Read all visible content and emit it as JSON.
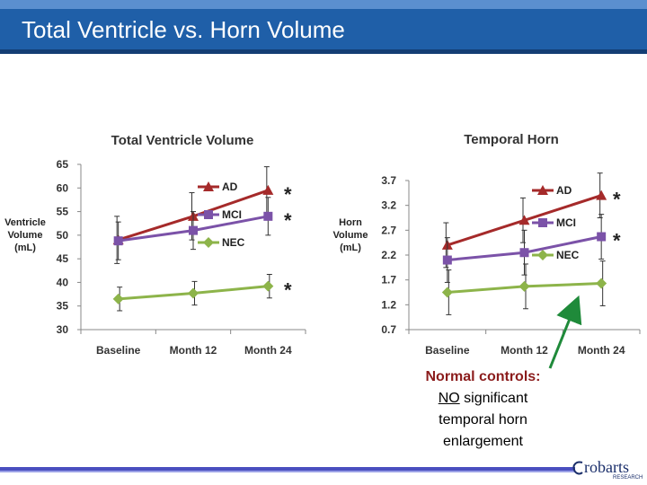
{
  "slide": {
    "title": "Total Ventricle vs. Horn Volume",
    "note_line1": "Normal controls:",
    "note_line2_underlined": "NO",
    "note_line2_rest": " significant",
    "note_line3": "temporal horn",
    "note_line4": "enlargement",
    "logo_text": "robarts",
    "logo_subtext": "RESEARCH",
    "colors": {
      "header": "#1f5fa8",
      "arrow": "#1f8a3a",
      "note_heading": "#8b1c1c"
    }
  },
  "chart_data": [
    {
      "type": "line",
      "title": "Total Ventricle Volume",
      "ylabel_lines": [
        "Ventricle",
        "Volume",
        "(mL)"
      ],
      "categories": [
        "Baseline",
        "Month 12",
        "Month 24"
      ],
      "yticks": [
        "65",
        "60",
        "55",
        "50",
        "45",
        "40",
        "35",
        "30"
      ],
      "ylim": [
        30,
        65
      ],
      "series": [
        {
          "name": "AD",
          "color": "#a52a2a",
          "marker": "triangle",
          "values": [
            49,
            54,
            59.5
          ],
          "errors": [
            5,
            5,
            5
          ],
          "significance": "*"
        },
        {
          "name": "MCI",
          "color": "#7b52a8",
          "marker": "square",
          "values": [
            48.8,
            51,
            54
          ],
          "errors": [
            4,
            4,
            4
          ],
          "significance": "*"
        },
        {
          "name": "NEC",
          "color": "#8db44a",
          "marker": "diamond",
          "values": [
            36.5,
            37.7,
            39.2
          ],
          "errors": [
            2.5,
            2.5,
            2.5
          ],
          "significance": "*"
        }
      ]
    },
    {
      "type": "line",
      "title": "Temporal Horn",
      "ylabel_lines": [
        "Horn",
        "Volume",
        "(mL)"
      ],
      "categories": [
        "Baseline",
        "Month 12",
        "Month 24"
      ],
      "yticks": [
        "3.7",
        "3.2",
        "2.7",
        "2.2",
        "1.7",
        "1.2",
        "0.7"
      ],
      "ylim": [
        0.7,
        3.7
      ],
      "series": [
        {
          "name": "AD",
          "color": "#a52a2a",
          "marker": "triangle",
          "values": [
            2.4,
            2.9,
            3.4
          ],
          "errors": [
            0.45,
            0.45,
            0.45
          ],
          "significance": "*"
        },
        {
          "name": "MCI",
          "color": "#7b52a8",
          "marker": "square",
          "values": [
            2.1,
            2.25,
            2.57
          ],
          "errors": [
            0.45,
            0.45,
            0.45
          ],
          "significance": "*"
        },
        {
          "name": "NEC",
          "color": "#8db44a",
          "marker": "diamond",
          "values": [
            1.45,
            1.57,
            1.63
          ],
          "errors": [
            0.45,
            0.45,
            0.45
          ],
          "significance": ""
        }
      ]
    }
  ]
}
